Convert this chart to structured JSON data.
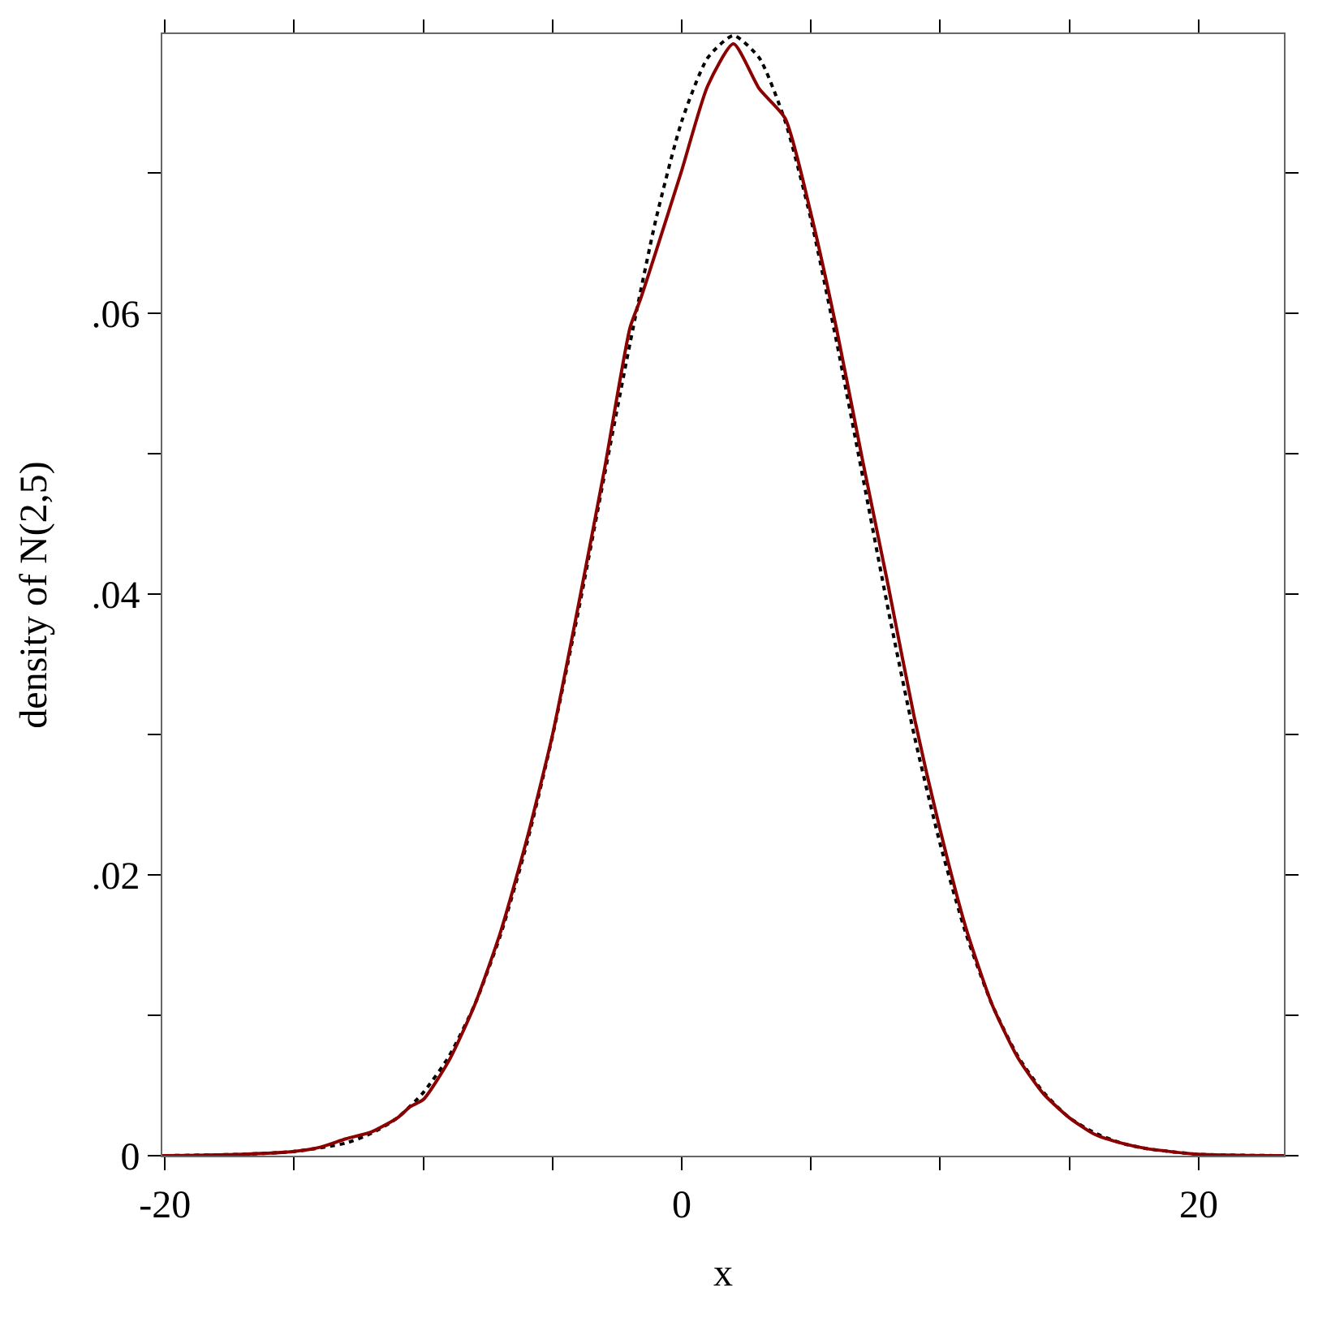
{
  "chart_data": {
    "type": "line",
    "xlabel": "x",
    "ylabel": "density of N(2,5)",
    "xlim": [
      -20.1,
      23.3
    ],
    "ylim": [
      0,
      0.0799
    ],
    "xticks": [
      -20,
      {
        "value": -15,
        "label": null
      },
      {
        "value": -10,
        "label": null
      },
      {
        "value": -5,
        "label": null
      },
      0,
      {
        "value": 5,
        "label": null
      },
      {
        "value": 10,
        "label": null
      },
      {
        "value": 15,
        "label": null
      },
      20
    ],
    "yticks": [
      0,
      {
        "value": 0.01,
        "label": null
      },
      {
        "value": 0.02,
        "label": ".02"
      },
      {
        "value": 0.03,
        "label": null
      },
      {
        "value": 0.04,
        "label": ".04"
      },
      {
        "value": 0.05,
        "label": null
      },
      {
        "value": 0.06,
        "label": ".06"
      },
      {
        "value": 0.07,
        "label": null
      }
    ],
    "grid": false,
    "series": [
      {
        "color": "#000000",
        "line_style": "dotted",
        "x": [
          -20,
          -17,
          -15,
          -13,
          -12,
          -11,
          -10,
          -9,
          -8,
          -7,
          -6,
          -5,
          -4,
          -3,
          -2,
          -1,
          0,
          1,
          2,
          3,
          4,
          5,
          6,
          7,
          8,
          9,
          10,
          11,
          12,
          13,
          14,
          15,
          16,
          17,
          18,
          20,
          23.3
        ],
        "values": [
          0,
          0.0001,
          0.0003,
          0.0009,
          0.0016,
          0.0027,
          0.0045,
          0.0071,
          0.0108,
          0.0158,
          0.0222,
          0.0299,
          0.0388,
          0.0484,
          0.0579,
          0.0667,
          0.0737,
          0.0782,
          0.0798,
          0.0782,
          0.0737,
          0.0667,
          0.0579,
          0.0484,
          0.0388,
          0.0299,
          0.0222,
          0.0158,
          0.0108,
          0.0071,
          0.0045,
          0.0027,
          0.0016,
          0.0009,
          0.0005,
          0.0001,
          0
        ]
      },
      {
        "color": "#8b0000",
        "line_style": "solid",
        "x": [
          -20.1,
          -17,
          -15,
          -14,
          -13,
          -12,
          -11,
          -10.5,
          -10,
          -9,
          -8,
          -7,
          -6,
          -5,
          -4,
          -3,
          -2,
          -1.6,
          -1,
          0,
          1,
          2,
          3,
          4,
          5,
          6,
          7,
          8,
          9,
          10,
          11,
          12,
          13,
          14,
          15,
          16,
          17,
          18,
          20,
          23.3
        ],
        "values": [
          0,
          0.0001,
          0.0003,
          0.0006,
          0.0012,
          0.0017,
          0.0027,
          0.0035,
          0.004,
          0.0068,
          0.0108,
          0.016,
          0.0225,
          0.03,
          0.0392,
          0.0488,
          0.059,
          0.061,
          0.0644,
          0.0702,
          0.0762,
          0.0792,
          0.076,
          0.0739,
          0.0671,
          0.0588,
          0.0495,
          0.0405,
          0.0312,
          0.0232,
          0.0162,
          0.0108,
          0.007,
          0.0044,
          0.0027,
          0.0015,
          0.0009,
          0.0005,
          0.0001,
          0
        ]
      }
    ]
  }
}
